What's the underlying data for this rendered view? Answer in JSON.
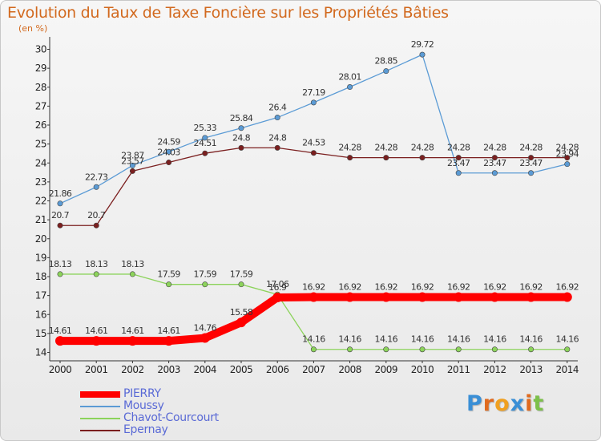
{
  "chart_data": {
    "type": "line",
    "title": "Evolution du Taux de Taxe Foncière sur les Propriétés Bâties",
    "ylabel": "(en %)",
    "xlabel": "",
    "x": [
      "2000",
      "2001",
      "2002",
      "2003",
      "2004",
      "2005",
      "2006",
      "2007",
      "2008",
      "2009",
      "2010",
      "2011",
      "2012",
      "2013",
      "2014"
    ],
    "ylim": [
      14,
      30
    ],
    "yticks": [
      "14",
      "15",
      "16",
      "17",
      "18",
      "19",
      "20",
      "21",
      "22",
      "23",
      "24",
      "25",
      "26",
      "27",
      "28",
      "29",
      "30"
    ],
    "series": [
      {
        "name": "PIERRY",
        "color": "#ff0000",
        "values": [
          14.61,
          14.61,
          14.61,
          14.61,
          14.76,
          15.58,
          16.9,
          16.92,
          16.92,
          16.92,
          16.92,
          16.92,
          16.92,
          16.92,
          16.92
        ],
        "labels": [
          "14.61",
          "14.61",
          "14.61",
          "14.61",
          "14.76",
          "15.58",
          "16.9",
          "16.92",
          "16.92",
          "16.92",
          "16.92",
          "16.92",
          "16.92",
          "16.92",
          "16.92"
        ]
      },
      {
        "name": "Moussy",
        "color": "#5b9bd5",
        "values": [
          21.86,
          22.73,
          23.87,
          24.59,
          25.33,
          25.84,
          26.4,
          27.19,
          28.01,
          28.85,
          29.72,
          23.47,
          23.47,
          23.47,
          23.94
        ],
        "labels": [
          "21.86",
          "22.73",
          "23.87",
          "24.59",
          "25.33",
          "25.84",
          "26.4",
          "27.19",
          "28.01",
          "28.85",
          "29.72",
          "23.47",
          "23.47",
          "23.47",
          "23.94"
        ]
      },
      {
        "name": "Chavot-Courcourt",
        "color": "#8cd35b",
        "values": [
          18.13,
          18.13,
          18.13,
          17.59,
          17.59,
          17.59,
          17.06,
          14.16,
          14.16,
          14.16,
          14.16,
          14.16,
          14.16,
          14.16,
          14.16
        ],
        "labels": [
          "18.13",
          "18.13",
          "18.13",
          "17.59",
          "17.59",
          "17.59",
          "17.06",
          "14.16",
          "14.16",
          "14.16",
          "14.16",
          "14.16",
          "14.16",
          "14.16",
          "14.16"
        ]
      },
      {
        "name": "Epernay",
        "color": "#7b1f1f",
        "values": [
          20.7,
          20.7,
          23.57,
          24.03,
          24.51,
          24.8,
          24.8,
          24.53,
          24.28,
          24.28,
          24.28,
          24.28,
          24.28,
          24.28,
          24.28
        ],
        "labels": [
          "20.7",
          "20.7",
          "23.57",
          "24.03",
          "24.51",
          "24.8",
          "24.8",
          "24.53",
          "24.28",
          "24.28",
          "24.28",
          "24.28",
          "24.28",
          "24.28",
          "24.28"
        ]
      }
    ],
    "legend": "bottom-left",
    "grid": false
  },
  "brand": {
    "letters": [
      "P",
      "r",
      "o",
      "x",
      "i",
      "t"
    ]
  }
}
